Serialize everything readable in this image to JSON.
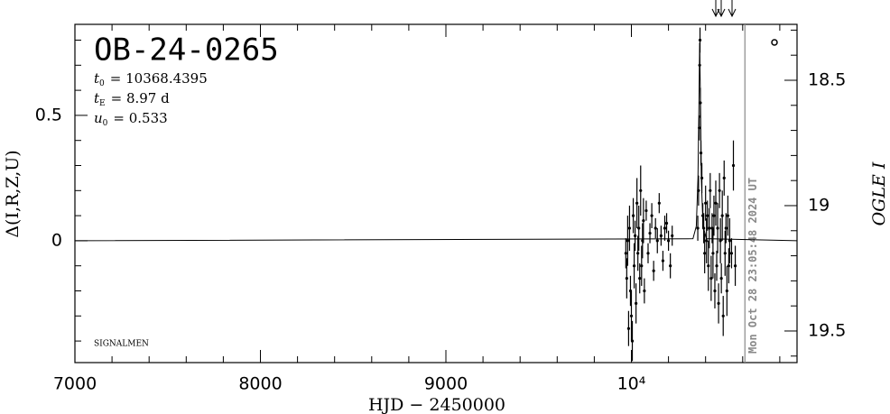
{
  "chart_data": {
    "type": "errorbar",
    "title": "OB-24-0265",
    "parameters": [
      {
        "symbol": "t",
        "subscript": "0",
        "text": "= 10368.4395"
      },
      {
        "symbol": "t",
        "subscript": "E",
        "text": "= 8.97 d"
      },
      {
        "symbol": "u",
        "subscript": "0",
        "text": "= 0.533"
      }
    ],
    "credit": "SIGNALMEN",
    "xlabel": "HJD − 2450000",
    "ylabel": "Δ(I,R,Z,U)",
    "y2label": "OGLE I",
    "xlim": [
      7000,
      10893
    ],
    "xticks": [
      7000,
      8000,
      9000,
      {
        "value": 10000,
        "label": "10⁴"
      }
    ],
    "xminor_ticks": [
      7200,
      7400,
      7600,
      7800,
      8200,
      8400,
      8600,
      8800,
      9200,
      9400,
      9600,
      9800,
      10200,
      10400,
      10600,
      10800
    ],
    "ylim": [
      -0.486,
      0.863
    ],
    "yticks": [
      0,
      0.5
    ],
    "yminor_ticks": [
      -0.4,
      -0.3,
      -0.2,
      -0.1,
      0.1,
      0.2,
      0.3,
      0.4,
      0.6,
      0.7,
      0.8
    ],
    "y2lim": [
      19.626,
      18.277
    ],
    "y2ticks": [
      18.5,
      19,
      19.5
    ],
    "y2minor_ticks": [
      18.3,
      18.4,
      18.6,
      18.7,
      18.8,
      18.9,
      19.1,
      19.2,
      19.3,
      19.4,
      19.6
    ],
    "date_line": {
      "x": 10612,
      "label": "Mon Oct 28 23:05:48 2024 UT",
      "color": "#888888"
    },
    "color": "#000000",
    "x": [
      9970,
      9975,
      9980,
      9985,
      9990,
      9995,
      10000,
      10005,
      10010,
      10015,
      10020,
      10025,
      10030,
      10035,
      10040,
      10045,
      10050,
      10055,
      10060,
      10065,
      10070,
      10080,
      10090,
      10100,
      10110,
      10120,
      10130,
      10140,
      10150,
      10160,
      10170,
      10180,
      10190,
      10200,
      10210,
      10220,
      10358,
      10362,
      10366,
      10368,
      10370,
      10372,
      10375,
      10380,
      10385,
      10390,
      10395,
      10400,
      10405,
      10410,
      10415,
      10420,
      10425,
      10430,
      10435,
      10440,
      10445,
      10450,
      10455,
      10460,
      10465,
      10470,
      10475,
      10480,
      10485,
      10490,
      10495,
      10500,
      10505,
      10510,
      10515,
      10520,
      10525,
      10530,
      10540,
      10550,
      10560
    ],
    "values": [
      -0.05,
      -0.15,
      0.0,
      -0.35,
      0.05,
      -0.2,
      -0.3,
      -0.4,
      0.1,
      -0.1,
      0.02,
      -0.25,
      0.15,
      -0.05,
      0.05,
      -0.15,
      0.2,
      -0.1,
      0.0,
      0.08,
      -0.2,
      0.12,
      -0.05,
      0.03,
      0.1,
      -0.12,
      0.05,
      0.0,
      0.15,
      0.02,
      -0.08,
      0.05,
      0.07,
      0.0,
      -0.1,
      0.02,
      0.05,
      0.2,
      0.45,
      0.7,
      0.8,
      0.55,
      0.35,
      0.25,
      0.1,
      0.05,
      -0.05,
      0.15,
      0.0,
      0.1,
      -0.1,
      0.05,
      0.2,
      -0.15,
      0.05,
      -0.05,
      0.1,
      -0.2,
      0.15,
      -0.1,
      0.05,
      -0.25,
      0.2,
      0.0,
      -0.15,
      0.1,
      -0.3,
      0.25,
      -0.05,
      0.05,
      -0.2,
      0.1,
      -0.1,
      0.0,
      -0.05,
      0.3,
      -0.1
    ],
    "errors": [
      0.06,
      0.08,
      0.1,
      0.07,
      0.09,
      0.06,
      0.1,
      0.08,
      0.07,
      0.09,
      0.06,
      0.08,
      0.1,
      0.07,
      0.09,
      0.06,
      0.1,
      0.08,
      0.07,
      0.09,
      0.05,
      0.04,
      0.04,
      0.04,
      0.05,
      0.04,
      0.04,
      0.05,
      0.04,
      0.04,
      0.04,
      0.05,
      0.04,
      0.04,
      0.05,
      0.04,
      0.05,
      0.06,
      0.05,
      0.06,
      0.05,
      0.06,
      0.05,
      0.06,
      0.05,
      0.06,
      0.08,
      0.07,
      0.09,
      0.06,
      0.1,
      0.08,
      0.07,
      0.09,
      0.06,
      0.1,
      0.08,
      0.07,
      0.09,
      0.06,
      0.1,
      0.08,
      0.07,
      0.09,
      0.06,
      0.1,
      0.08,
      0.07,
      0.09,
      0.06,
      0.1,
      0.08,
      0.07,
      0.09,
      0.06,
      0.1,
      0.08
    ],
    "model": {
      "x": [
        7000,
        10332,
        10350,
        10359,
        10364,
        10368,
        10373,
        10377,
        10386,
        10405,
        10893
      ],
      "values": [
        0,
        0.008,
        0.058,
        0.252,
        0.529,
        0.79,
        0.529,
        0.252,
        0.058,
        0.008,
        0
      ]
    }
  }
}
